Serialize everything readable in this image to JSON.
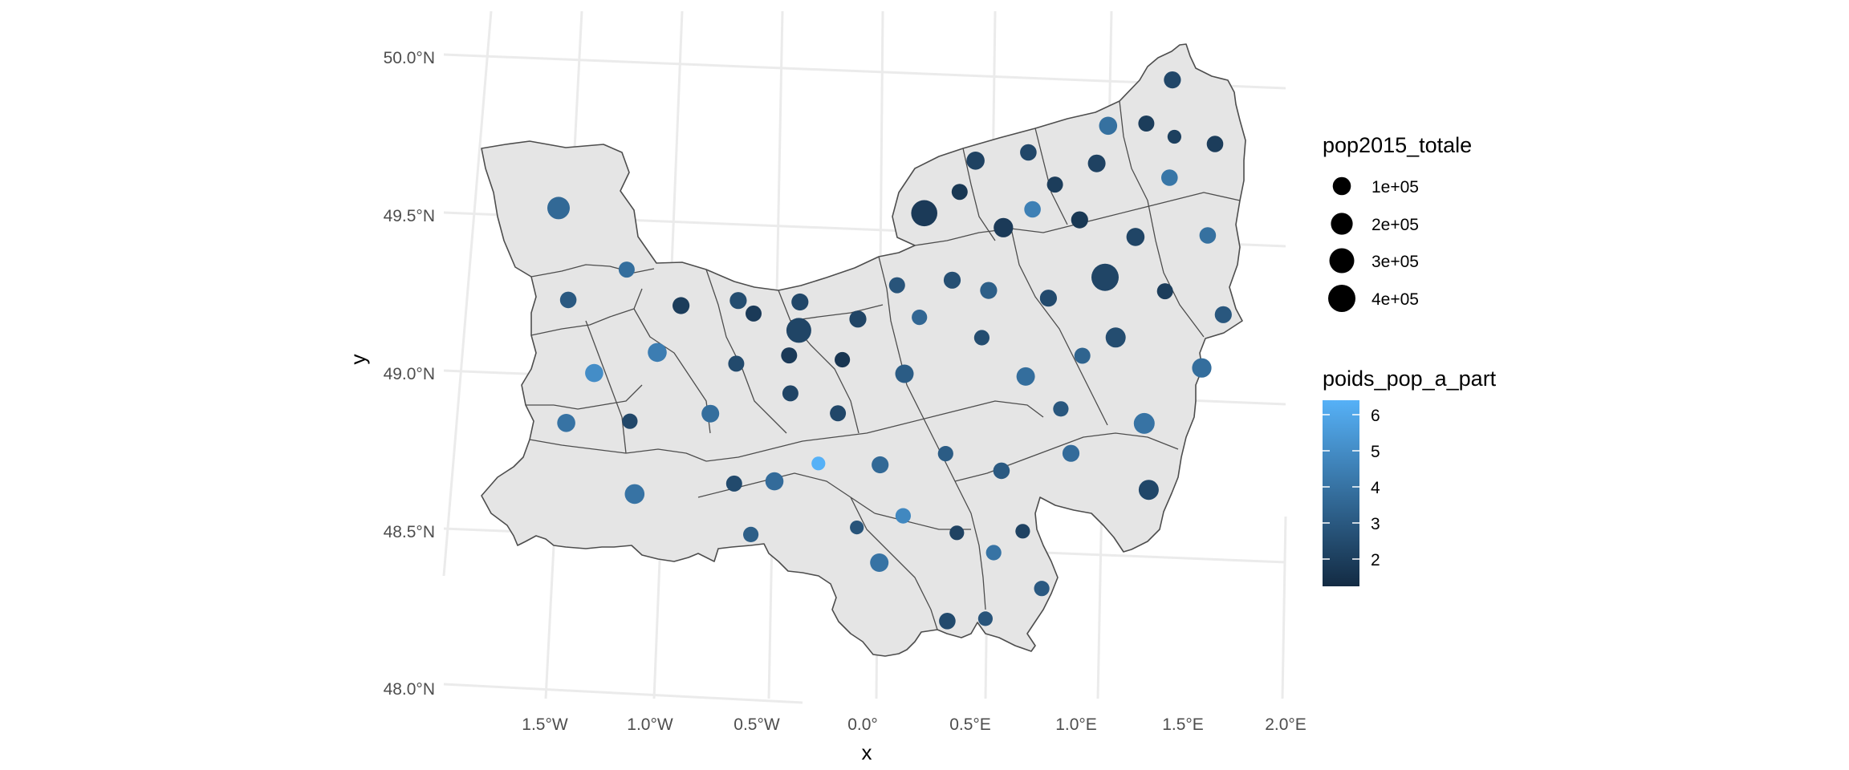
{
  "chart_data": {
    "type": "map",
    "xlabel": "x",
    "ylabel": "y",
    "x_ticks": [
      "1.5°W",
      "1.0°W",
      "0.5°W",
      "0.0°",
      "0.5°E",
      "1.0°E",
      "1.5°E",
      "2.0°E"
    ],
    "y_ticks": [
      "50.0°N",
      "49.5°N",
      "49.0°N",
      "48.5°N",
      "48.0°N"
    ],
    "xlim": [
      -1.9,
      2.0
    ],
    "ylim": [
      48.0,
      50.1
    ],
    "legend_size": {
      "title": "pop2015_totale",
      "labels": [
        "1e+05",
        "2e+05",
        "3e+05",
        "4e+05"
      ],
      "values": [
        100000,
        200000,
        300000,
        400000
      ]
    },
    "legend_color": {
      "title": "poids_pop_a_part",
      "labels": [
        "6",
        "5",
        "4",
        "3",
        "2"
      ],
      "values": [
        6,
        5,
        4,
        3,
        2
      ],
      "low_color": "#132B43",
      "high_color": "#56B1F7",
      "range": [
        1.3,
        6.5
      ]
    },
    "points": [
      {
        "lon": -1.43,
        "lat": 49.5,
        "pop": 220000,
        "w": 3.7
      },
      {
        "lon": -1.4,
        "lat": 49.21,
        "pop": 70000,
        "w": 3.1
      },
      {
        "lon": -1.12,
        "lat": 49.31,
        "pop": 60000,
        "w": 3.9
      },
      {
        "lon": -0.87,
        "lat": 49.2,
        "pop": 80000,
        "w": 2.0
      },
      {
        "lon": -0.6,
        "lat": 49.22,
        "pop": 80000,
        "w": 2.6
      },
      {
        "lon": -0.53,
        "lat": 49.18,
        "pop": 60000,
        "w": 1.9
      },
      {
        "lon": -0.31,
        "lat": 49.22,
        "pop": 80000,
        "w": 2.4
      },
      {
        "lon": -0.32,
        "lat": 49.13,
        "pop": 300000,
        "w": 2.3
      },
      {
        "lon": -0.04,
        "lat": 49.17,
        "pop": 80000,
        "w": 2.3
      },
      {
        "lon": 0.15,
        "lat": 49.28,
        "pop": 60000,
        "w": 2.9
      },
      {
        "lon": 0.25,
        "lat": 49.18,
        "pop": 50000,
        "w": 3.6
      },
      {
        "lon": 0.41,
        "lat": 49.3,
        "pop": 80000,
        "w": 2.7
      },
      {
        "lon": 0.58,
        "lat": 49.27,
        "pop": 80000,
        "w": 3.3
      },
      {
        "lon": 0.29,
        "lat": 49.51,
        "pop": 350000,
        "w": 1.9
      },
      {
        "lon": 0.46,
        "lat": 49.58,
        "pop": 60000,
        "w": 1.8
      },
      {
        "lon": 0.54,
        "lat": 49.68,
        "pop": 100000,
        "w": 2.2
      },
      {
        "lon": 0.66,
        "lat": 49.47,
        "pop": 130000,
        "w": 1.9
      },
      {
        "lon": 0.79,
        "lat": 49.71,
        "pop": 70000,
        "w": 2.4
      },
      {
        "lon": 0.8,
        "lat": 49.53,
        "pop": 70000,
        "w": 4.6
      },
      {
        "lon": 0.91,
        "lat": 49.61,
        "pop": 60000,
        "w": 2.0
      },
      {
        "lon": 1.02,
        "lat": 49.5,
        "pop": 80000,
        "w": 1.8
      },
      {
        "lon": 1.11,
        "lat": 49.68,
        "pop": 90000,
        "w": 2.2
      },
      {
        "lon": 1.17,
        "lat": 49.8,
        "pop": 100000,
        "w": 4.0
      },
      {
        "lon": 1.35,
        "lat": 49.81,
        "pop": 60000,
        "w": 2.0
      },
      {
        "lon": 1.48,
        "lat": 49.77,
        "pop": 30000,
        "w": 2.1
      },
      {
        "lon": 1.48,
        "lat": 49.95,
        "pop": 80000,
        "w": 2.4
      },
      {
        "lon": 1.67,
        "lat": 49.75,
        "pop": 70000,
        "w": 2.0
      },
      {
        "lon": 1.45,
        "lat": 49.64,
        "pop": 70000,
        "w": 4.2
      },
      {
        "lon": 1.28,
        "lat": 49.45,
        "pop": 100000,
        "w": 2.3
      },
      {
        "lon": 1.62,
        "lat": 49.46,
        "pop": 70000,
        "w": 4.0
      },
      {
        "lon": 1.13,
        "lat": 49.32,
        "pop": 400000,
        "w": 2.3
      },
      {
        "lon": 0.86,
        "lat": 49.25,
        "pop": 80000,
        "w": 2.5
      },
      {
        "lon": 1.41,
        "lat": 49.28,
        "pop": 60000,
        "w": 2.0
      },
      {
        "lon": 1.68,
        "lat": 49.21,
        "pop": 80000,
        "w": 3.0
      },
      {
        "lon": 1.17,
        "lat": 49.13,
        "pop": 150000,
        "w": 2.6
      },
      {
        "lon": 1.01,
        "lat": 49.07,
        "pop": 60000,
        "w": 3.5
      },
      {
        "lon": 1.57,
        "lat": 49.04,
        "pop": 130000,
        "w": 3.9
      },
      {
        "lon": 0.54,
        "lat": 49.12,
        "pop": 50000,
        "w": 2.6
      },
      {
        "lon": 0.74,
        "lat": 49.0,
        "pop": 110000,
        "w": 3.9
      },
      {
        "lon": 0.17,
        "lat": 49.0,
        "pop": 110000,
        "w": 3.2
      },
      {
        "lon": -0.12,
        "lat": 49.04,
        "pop": 50000,
        "w": 1.7
      },
      {
        "lon": -0.37,
        "lat": 49.05,
        "pop": 60000,
        "w": 1.9
      },
      {
        "lon": -0.62,
        "lat": 49.02,
        "pop": 60000,
        "w": 2.5
      },
      {
        "lon": -0.99,
        "lat": 49.05,
        "pop": 120000,
        "w": 4.5
      },
      {
        "lon": -1.29,
        "lat": 48.98,
        "pop": 100000,
        "w": 5.1
      },
      {
        "lon": -0.37,
        "lat": 48.93,
        "pop": 60000,
        "w": 2.3
      },
      {
        "lon": -0.75,
        "lat": 48.86,
        "pop": 90000,
        "w": 3.9
      },
      {
        "lon": -0.15,
        "lat": 48.87,
        "pop": 60000,
        "w": 2.4
      },
      {
        "lon": -1.13,
        "lat": 48.83,
        "pop": 50000,
        "w": 2.4
      },
      {
        "lon": -1.43,
        "lat": 48.82,
        "pop": 100000,
        "w": 4.1
      },
      {
        "lon": 0.9,
        "lat": 48.9,
        "pop": 50000,
        "w": 3.0
      },
      {
        "lon": 1.29,
        "lat": 48.86,
        "pop": 170000,
        "w": 4.1
      },
      {
        "lon": 0.35,
        "lat": 48.75,
        "pop": 50000,
        "w": 3.2
      },
      {
        "lon": 0.04,
        "lat": 48.71,
        "pop": 80000,
        "w": 3.7
      },
      {
        "lon": -0.25,
        "lat": 48.71,
        "pop": 30000,
        "w": 6.5
      },
      {
        "lon": -0.46,
        "lat": 48.65,
        "pop": 100000,
        "w": 3.8
      },
      {
        "lon": -0.65,
        "lat": 48.64,
        "pop": 60000,
        "w": 2.5
      },
      {
        "lon": 0.61,
        "lat": 48.7,
        "pop": 70000,
        "w": 3.1
      },
      {
        "lon": 0.94,
        "lat": 48.76,
        "pop": 80000,
        "w": 3.8
      },
      {
        "lon": 1.3,
        "lat": 48.65,
        "pop": 150000,
        "w": 2.4
      },
      {
        "lon": -1.12,
        "lat": 48.6,
        "pop": 140000,
        "w": 4.1
      },
      {
        "lon": 0.14,
        "lat": 48.55,
        "pop": 50000,
        "w": 4.9
      },
      {
        "lon": -0.58,
        "lat": 48.48,
        "pop": 50000,
        "w": 3.3
      },
      {
        "lon": -0.08,
        "lat": 48.51,
        "pop": 30000,
        "w": 2.9
      },
      {
        "lon": 0.39,
        "lat": 48.5,
        "pop": 40000,
        "w": 2.2
      },
      {
        "lon": 0.7,
        "lat": 48.51,
        "pop": 40000,
        "w": 2.2
      },
      {
        "lon": 0.02,
        "lat": 48.4,
        "pop": 110000,
        "w": 4.1
      },
      {
        "lon": 0.56,
        "lat": 48.44,
        "pop": 50000,
        "w": 4.1
      },
      {
        "lon": 0.78,
        "lat": 48.33,
        "pop": 50000,
        "w": 3.1
      },
      {
        "lon": 0.33,
        "lat": 48.22,
        "pop": 70000,
        "w": 2.5
      },
      {
        "lon": 0.51,
        "lat": 48.23,
        "pop": 40000,
        "w": 2.9
      }
    ]
  }
}
